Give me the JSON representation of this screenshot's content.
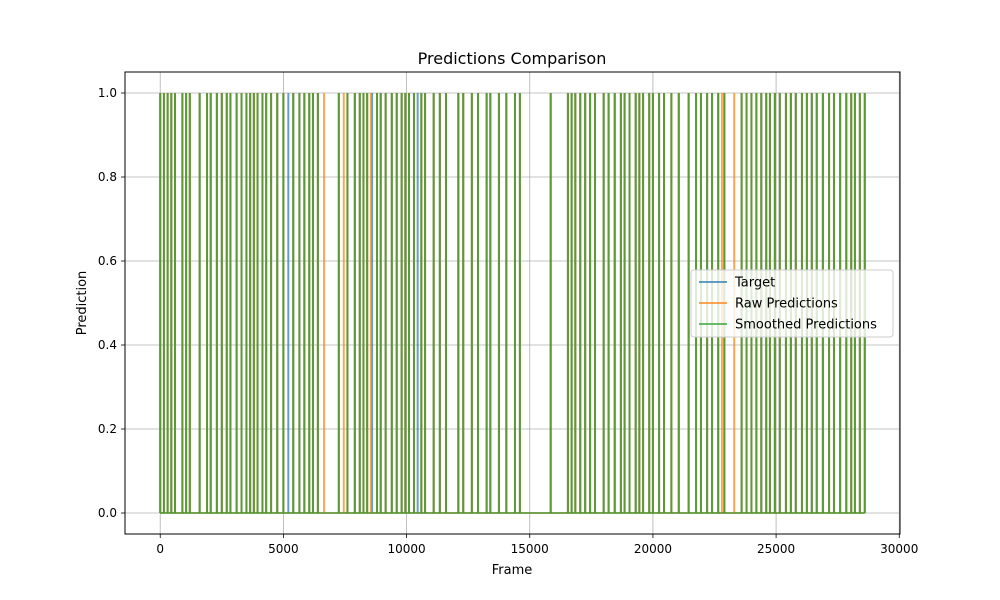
{
  "chart_data": {
    "type": "line",
    "title": "Predictions Comparison",
    "xlabel": "Frame",
    "ylabel": "Prediction",
    "xlim": [
      -1430,
      30030
    ],
    "ylim": [
      -0.05,
      1.05
    ],
    "x_ticks": [
      0,
      5000,
      10000,
      15000,
      20000,
      25000,
      30000
    ],
    "y_ticks": [
      0.0,
      0.2,
      0.4,
      0.6,
      0.8,
      1.0
    ],
    "x_tick_labels": [
      "0",
      "5000",
      "10000",
      "15000",
      "20000",
      "25000",
      "30000"
    ],
    "y_tick_labels": [
      "0.0",
      "0.2",
      "0.4",
      "0.6",
      "0.8",
      "1.0"
    ],
    "grid": true,
    "legend_position": "center-right",
    "series": [
      {
        "name": "Target",
        "color": "#1f77b4",
        "x_range": [
          0,
          28600
        ],
        "spike_frames": [
          0,
          150,
          300,
          450,
          600,
          900,
          1050,
          1200,
          1600,
          1900,
          2050,
          2300,
          2500,
          2700,
          2850,
          3100,
          3300,
          3500,
          3650,
          3800,
          3950,
          4150,
          4300,
          4500,
          4750,
          5000,
          5200,
          5400,
          5650,
          5850,
          6050,
          6200,
          6400,
          7250,
          7600,
          7900,
          8100,
          8250,
          8400,
          8600,
          8800,
          8950,
          9150,
          9400,
          9600,
          9800,
          9950,
          10100,
          10300,
          10450,
          10600,
          10750,
          11100,
          11350,
          11600,
          12100,
          12300,
          12650,
          12900,
          13250,
          13400,
          13750,
          14050,
          14400,
          14600,
          15850,
          16550,
          16700,
          16850,
          17050,
          17250,
          17450,
          17650,
          18000,
          18200,
          18450,
          18700,
          18850,
          19050,
          19300,
          19450,
          19600,
          19850,
          20000,
          20250,
          20450,
          20750,
          21050,
          21450,
          21750,
          21950,
          22200,
          22400,
          22650,
          22900,
          23600,
          23800,
          24000,
          24200,
          24400,
          24600,
          24750,
          24950,
          25150,
          25400,
          25600,
          25800,
          26050,
          26250,
          26450,
          26650,
          26900,
          27150,
          27350,
          27600,
          27850,
          28050,
          28200,
          28400,
          28600
        ]
      },
      {
        "name": "Raw Predictions",
        "color": "#ff7f0e",
        "x_range": [
          0,
          28600
        ],
        "spike_frames": [
          0,
          150,
          300,
          450,
          600,
          900,
          1050,
          1200,
          1600,
          1900,
          2050,
          2300,
          2500,
          2700,
          2850,
          3100,
          3300,
          3500,
          3650,
          3800,
          3950,
          4150,
          4300,
          4500,
          4750,
          5000,
          5400,
          5650,
          5850,
          6050,
          6200,
          6400,
          6650,
          7250,
          7450,
          7600,
          7900,
          8100,
          8250,
          8400,
          8550,
          8800,
          8950,
          9150,
          9400,
          9600,
          9800,
          9950,
          10100,
          10300,
          10600,
          10750,
          11100,
          11350,
          11600,
          12100,
          12300,
          12650,
          12900,
          13250,
          13400,
          13750,
          14050,
          14400,
          14600,
          15850,
          16550,
          16700,
          16850,
          17050,
          17250,
          17450,
          17650,
          18000,
          18200,
          18450,
          18700,
          18850,
          19050,
          19300,
          19450,
          19600,
          19850,
          20000,
          20250,
          20450,
          20750,
          21050,
          21450,
          21750,
          21950,
          22200,
          22400,
          22650,
          22800,
          22900,
          23300,
          23600,
          23800,
          24000,
          24200,
          24400,
          24600,
          24750,
          24950,
          25150,
          25400,
          25600,
          25800,
          26050,
          26250,
          26450,
          26650,
          26900,
          27150,
          27350,
          27600,
          27850,
          28050,
          28200,
          28400,
          28600
        ]
      },
      {
        "name": "Smoothed Predictions",
        "color": "#2ca02c",
        "x_range": [
          0,
          28600
        ],
        "spike_frames": [
          0,
          150,
          300,
          450,
          600,
          900,
          1050,
          1200,
          1600,
          1900,
          2050,
          2300,
          2500,
          2700,
          2850,
          3100,
          3300,
          3500,
          3650,
          3800,
          3950,
          4150,
          4300,
          4500,
          4750,
          5000,
          5400,
          5650,
          5850,
          6050,
          6200,
          6400,
          7250,
          7600,
          7900,
          8100,
          8250,
          8400,
          8800,
          8950,
          9150,
          9400,
          9600,
          9800,
          9950,
          10100,
          10300,
          10600,
          10750,
          11100,
          11350,
          11600,
          12100,
          12300,
          12650,
          12900,
          13250,
          13400,
          13750,
          14050,
          14400,
          14600,
          15850,
          16550,
          16700,
          16850,
          17050,
          17250,
          17450,
          17650,
          18000,
          18200,
          18450,
          18700,
          18850,
          19050,
          19300,
          19450,
          19600,
          19850,
          20000,
          20250,
          20450,
          20750,
          21050,
          21450,
          21750,
          21950,
          22200,
          22400,
          22650,
          22900,
          23600,
          23800,
          24000,
          24200,
          24400,
          24600,
          24750,
          24950,
          25150,
          25400,
          25600,
          25800,
          26050,
          26250,
          26450,
          26650,
          26900,
          27150,
          27350,
          27600,
          27850,
          28050,
          28200,
          28400,
          28600
        ]
      }
    ]
  }
}
